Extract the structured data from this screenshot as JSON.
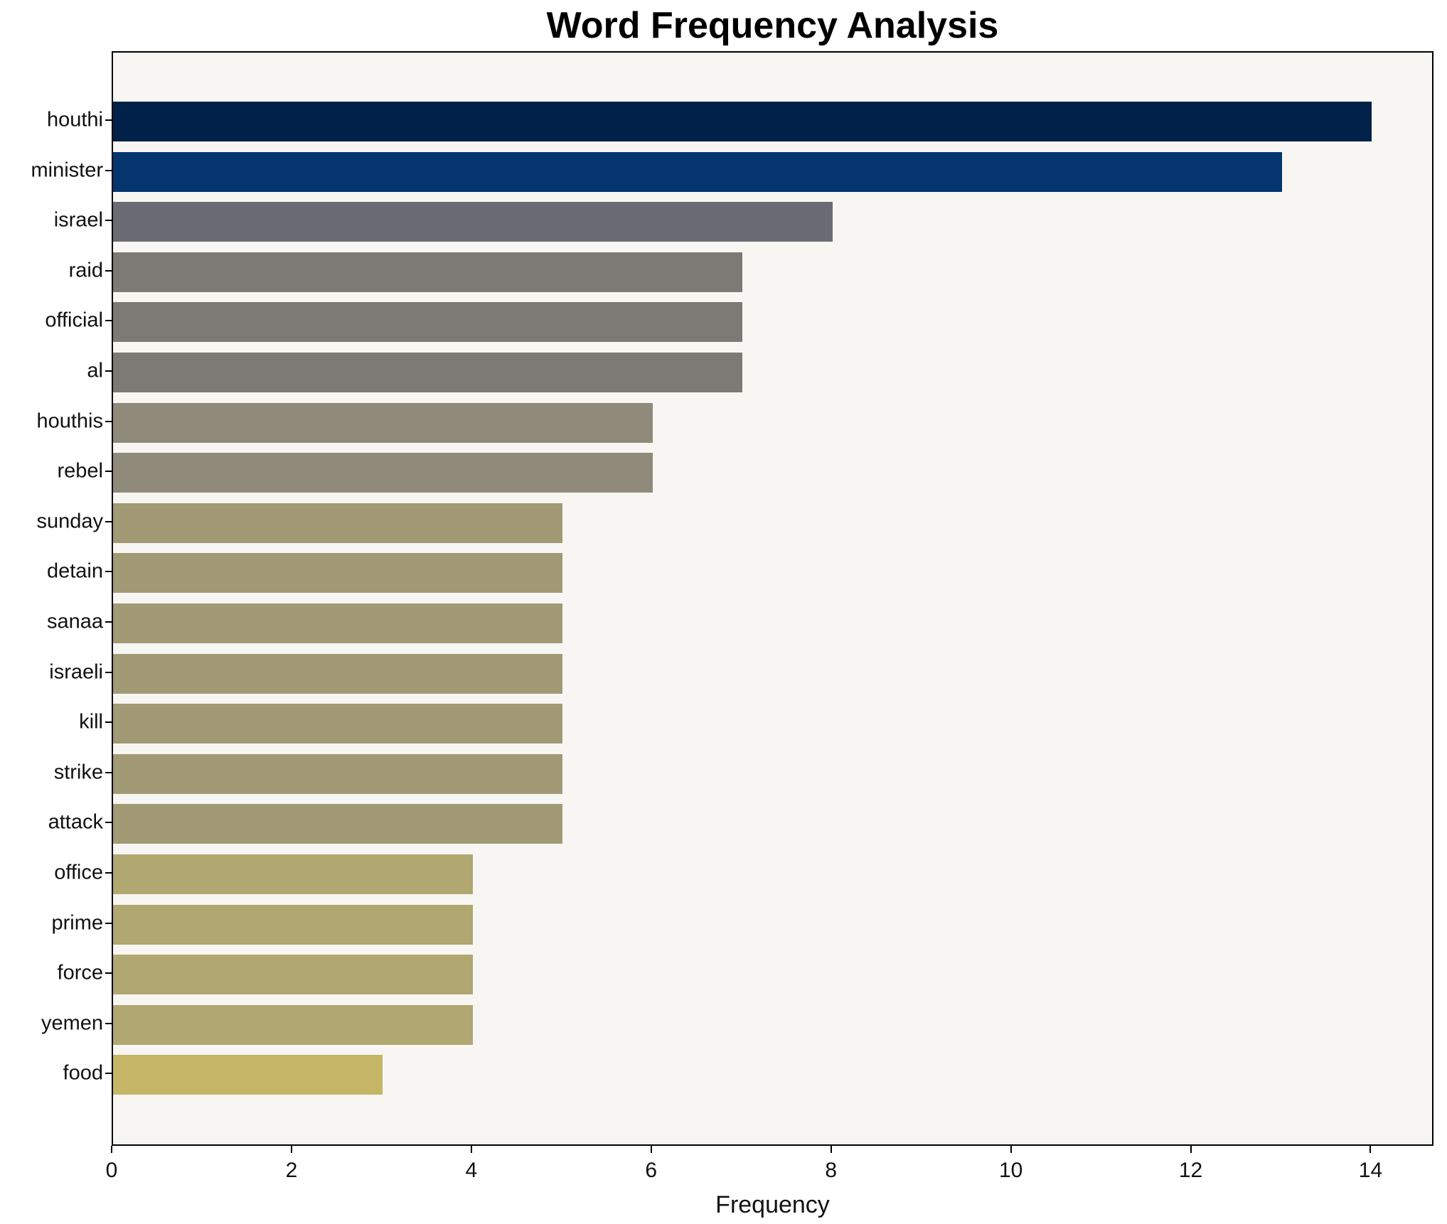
{
  "chart_data": {
    "type": "bar",
    "orientation": "horizontal",
    "title": "Word Frequency Analysis",
    "xlabel": "Frequency",
    "ylabel": "",
    "categories": [
      "houthi",
      "minister",
      "israel",
      "raid",
      "official",
      "al",
      "houthis",
      "rebel",
      "sunday",
      "detain",
      "sanaa",
      "israeli",
      "kill",
      "strike",
      "attack",
      "office",
      "prime",
      "force",
      "yemen",
      "food"
    ],
    "values": [
      14,
      13,
      8,
      7,
      7,
      7,
      6,
      6,
      5,
      5,
      5,
      5,
      5,
      5,
      5,
      4,
      4,
      4,
      4,
      3
    ],
    "bar_colors": [
      "#002148",
      "#04356e",
      "#696d73",
      "#7b7a75",
      "#7b7a75",
      "#7b7a75",
      "#8f8a79",
      "#8f8a79",
      "#a29a75",
      "#a29a75",
      "#a29a75",
      "#a29a75",
      "#a29a75",
      "#a29a75",
      "#a29a75",
      "#b1a771",
      "#b1a771",
      "#b1a771",
      "#b1a771",
      "#c5b566"
    ],
    "xlim": [
      0,
      14.7
    ],
    "xticks": [
      0,
      2,
      4,
      6,
      8,
      10,
      12,
      14
    ],
    "grid": false,
    "legend": "none",
    "plot_background": "#f7f6f3",
    "figure_background": "#ffffff",
    "spine_color": "#000000"
  }
}
